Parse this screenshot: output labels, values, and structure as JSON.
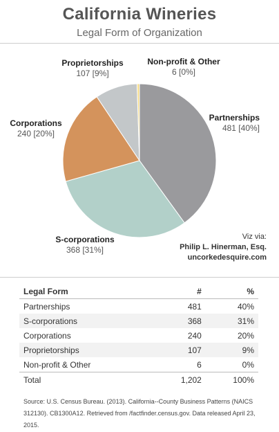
{
  "header": {
    "title": "California Wineries",
    "subtitle": "Legal Form of Organization"
  },
  "colors": {
    "Partnerships": "#9a9a9d",
    "S-corporations": "#b2d0c9",
    "Corporations": "#d4935c",
    "Proprietorships": "#c3c7c9",
    "Non-profit & Other": "#f6dc88"
  },
  "chart_data": {
    "type": "pie",
    "title": "California Wineries",
    "subtitle": "Legal Form of Organization",
    "slices": [
      {
        "name": "Partnerships",
        "value": 481,
        "label": "481 [40%]"
      },
      {
        "name": "S-corporations",
        "value": 368,
        "label": "368 [31%]"
      },
      {
        "name": "Corporations",
        "value": 240,
        "label": "240 [20%]"
      },
      {
        "name": "Proprietorships",
        "value": 107,
        "label": "107 [9%]"
      },
      {
        "name": "Non-profit & Other",
        "value": 6,
        "label": "6 [0%]"
      }
    ]
  },
  "credit": {
    "line1": "Viz via:",
    "line2": "Philip L. Hinerman, Esq.",
    "line3": "uncorkedesquire.com"
  },
  "table": {
    "headers": [
      "Legal Form",
      "#",
      "%"
    ],
    "rows": [
      [
        "Partnerships",
        "481",
        "40%"
      ],
      [
        "S-corporations",
        "368",
        "31%"
      ],
      [
        "Corporations",
        "240",
        "20%"
      ],
      [
        "Proprietorships",
        "107",
        "9%"
      ],
      [
        "Non-profit & Other",
        "6",
        "0%"
      ]
    ],
    "total": [
      "Total",
      "1,202",
      "100%"
    ]
  },
  "source": "Source: U.S. Census Bureau. (2013). California--County Business Patterns (NAICS 312130). CB1300A12. Retrieved from /factfinder.census.gov. Data released April 23, 2015."
}
